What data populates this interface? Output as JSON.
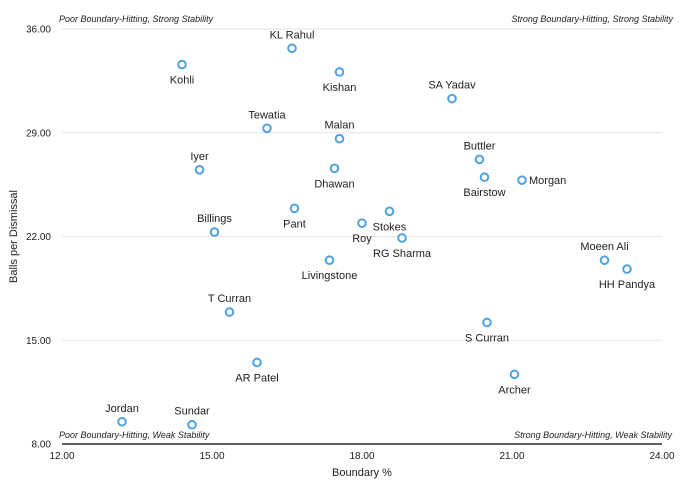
{
  "chart_data": {
    "type": "scatter",
    "xlabel": "Boundary %",
    "ylabel": "Balls per Dismissal",
    "xlim": [
      12,
      24
    ],
    "ylim": [
      8,
      36
    ],
    "x_ticks": [
      "12.00",
      "15.00",
      "18.00",
      "21.00",
      "24.00"
    ],
    "y_ticks": [
      "8.00",
      "15.00",
      "22.00",
      "29.00",
      "36.00"
    ],
    "grid": true,
    "point_color": "#4ea3e0",
    "corner_labels": {
      "top_left": "Poor Boundary-Hitting, Strong Stability",
      "top_right": "Strong Boundary-Hitting, Strong Stability",
      "bottom_left": "Poor Boundary-Hitting, Weak Stability",
      "bottom_right": "Strong Boundary-Hitting, Weak Stability"
    },
    "points": [
      {
        "name": "KL Rahul",
        "x": 16.6,
        "y": 34.7,
        "label_pos": "above"
      },
      {
        "name": "Kohli",
        "x": 14.4,
        "y": 33.6,
        "label_pos": "below"
      },
      {
        "name": "Kishan",
        "x": 17.55,
        "y": 33.1,
        "label_pos": "below"
      },
      {
        "name": "SA Yadav",
        "x": 19.8,
        "y": 31.3,
        "label_pos": "above"
      },
      {
        "name": "Tewatia",
        "x": 16.1,
        "y": 29.3,
        "label_pos": "above"
      },
      {
        "name": "Malan",
        "x": 17.55,
        "y": 28.6,
        "label_pos": "above"
      },
      {
        "name": "Iyer",
        "x": 14.75,
        "y": 26.5,
        "label_pos": "above"
      },
      {
        "name": "Dhawan",
        "x": 17.45,
        "y": 26.6,
        "label_pos": "below"
      },
      {
        "name": "Buttler",
        "x": 20.35,
        "y": 27.2,
        "label_pos": "above"
      },
      {
        "name": "Bairstow",
        "x": 20.45,
        "y": 26.0,
        "label_pos": "below"
      },
      {
        "name": "Morgan",
        "x": 21.2,
        "y": 25.8,
        "label_pos": "right"
      },
      {
        "name": "Pant",
        "x": 16.65,
        "y": 23.9,
        "label_pos": "below"
      },
      {
        "name": "Stokes",
        "x": 18.55,
        "y": 23.7,
        "label_pos": "below"
      },
      {
        "name": "Billings",
        "x": 15.05,
        "y": 22.3,
        "label_pos": "above"
      },
      {
        "name": "Roy",
        "x": 18.0,
        "y": 22.9,
        "label_pos": "below"
      },
      {
        "name": "RG Sharma",
        "x": 18.8,
        "y": 21.9,
        "label_pos": "below"
      },
      {
        "name": "Livingstone",
        "x": 17.35,
        "y": 20.4,
        "label_pos": "below"
      },
      {
        "name": "Moeen Ali",
        "x": 22.85,
        "y": 20.4,
        "label_pos": "above"
      },
      {
        "name": "HH Pandya",
        "x": 23.3,
        "y": 19.8,
        "label_pos": "below"
      },
      {
        "name": "T Curran",
        "x": 15.35,
        "y": 16.9,
        "label_pos": "above"
      },
      {
        "name": "S Curran",
        "x": 20.5,
        "y": 16.2,
        "label_pos": "below"
      },
      {
        "name": "AR Patel",
        "x": 15.9,
        "y": 13.5,
        "label_pos": "below"
      },
      {
        "name": "Archer",
        "x": 21.05,
        "y": 12.7,
        "label_pos": "below"
      },
      {
        "name": "Jordan",
        "x": 13.2,
        "y": 9.5,
        "label_pos": "above"
      },
      {
        "name": "Sundar",
        "x": 14.6,
        "y": 9.3,
        "label_pos": "above"
      }
    ]
  }
}
